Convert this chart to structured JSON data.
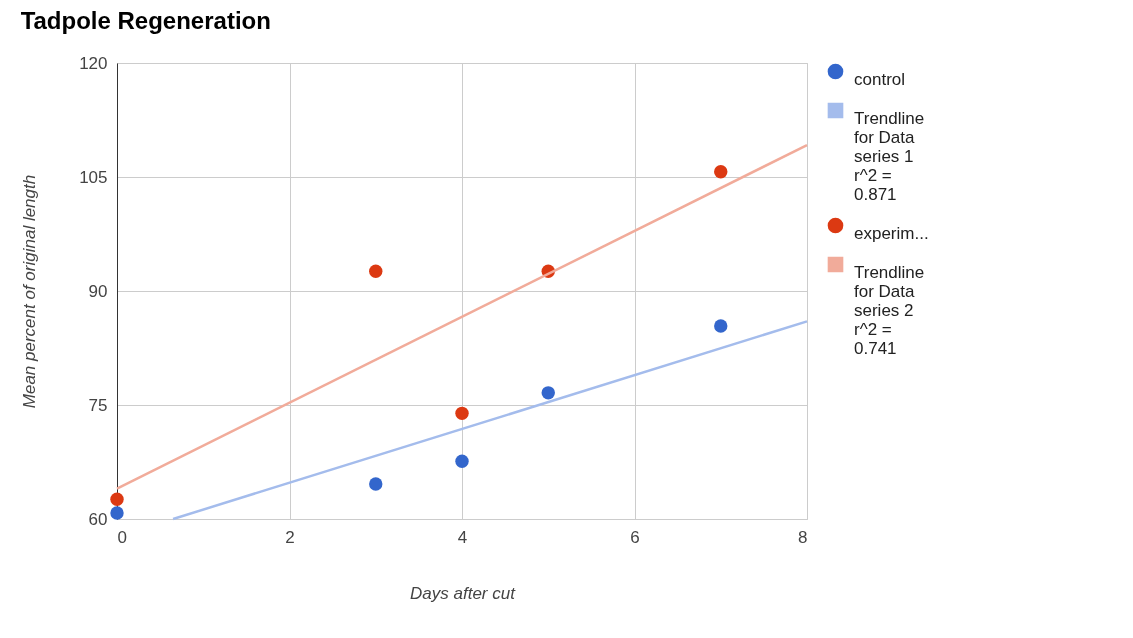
{
  "chart_data": {
    "type": "scatter",
    "title": "Tadpole Regeneration",
    "xlabel": "Days after cut",
    "ylabel": "Mean percent of original length",
    "xlim": [
      0,
      8
    ],
    "xticks": [
      0,
      2,
      4,
      6,
      8
    ],
    "ylim": [
      60,
      120
    ],
    "yticks": [
      60,
      75,
      90,
      105,
      120
    ],
    "grid": true,
    "legend": "top right",
    "line_style": "solid",
    "series": [
      {
        "name": "control",
        "marker": "circle",
        "color": "#3366cc",
        "x": [
          0,
          3,
          4,
          5,
          7
        ],
        "values": [
          60.8,
          64.6,
          67.6,
          76.6,
          85.4
        ]
      },
      {
        "name": "Trendline for Data series 1 r^2 = 0.871",
        "type": "line",
        "marker": "none",
        "color": "#a4bcec",
        "x": [
          0.65,
          8
        ],
        "values": [
          60,
          86
        ]
      },
      {
        "name": "experim...",
        "marker": "circle",
        "color": "#dc3912",
        "x": [
          0,
          3,
          4,
          5,
          7
        ],
        "values": [
          62.6,
          92.6,
          73.9,
          92.6,
          105.7
        ]
      },
      {
        "name": "Trendline for Data series 2 r^2 = 0.741",
        "type": "line",
        "marker": "none",
        "color": "#f1ab9a",
        "x": [
          0,
          8
        ],
        "values": [
          64,
          109.2
        ]
      }
    ]
  }
}
